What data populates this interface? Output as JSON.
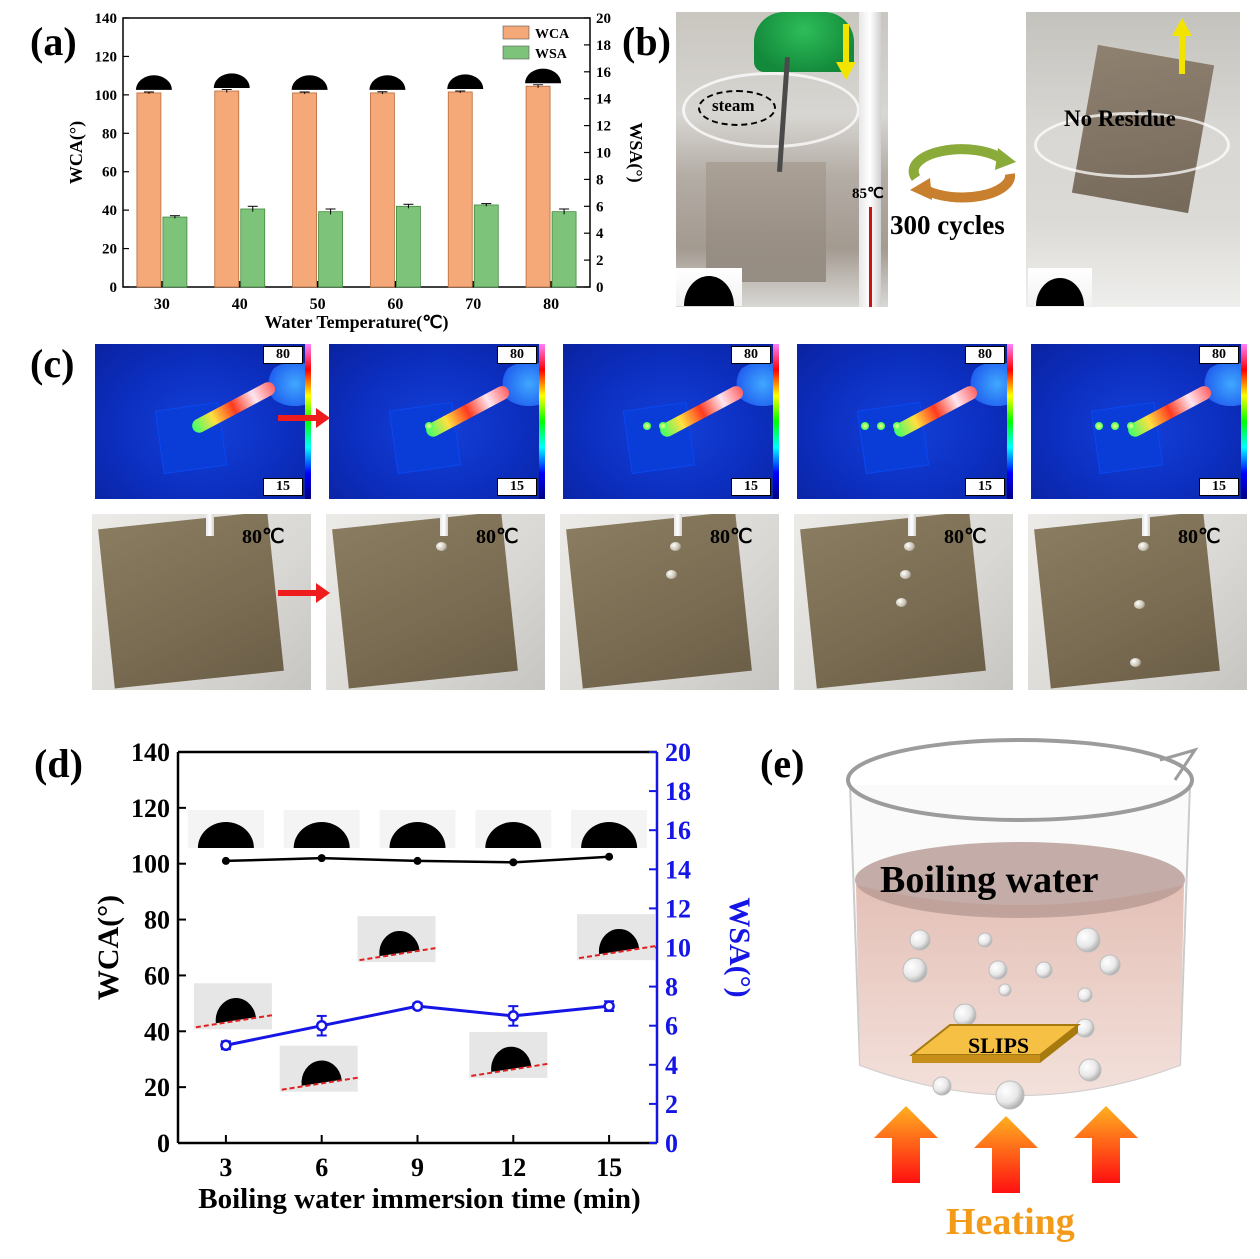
{
  "panel_labels": {
    "a": "(a)",
    "b": "(b)",
    "c": "(c)",
    "d": "(d)",
    "e": "(e)"
  },
  "chart_data": [
    {
      "id": "a",
      "type": "bar",
      "categories": [
        "30",
        "40",
        "50",
        "60",
        "70",
        "80"
      ],
      "series": [
        {
          "name": "WCA",
          "axis": "left",
          "values": [
            101,
            102,
            101,
            101,
            101.5,
            104.5
          ],
          "errors": [
            0.5,
            0.8,
            0.5,
            0.6,
            0.5,
            0.8
          ],
          "color": "#f5a878"
        },
        {
          "name": "WSA",
          "axis": "right",
          "values": [
            5.2,
            5.8,
            5.6,
            6.0,
            6.1,
            5.6
          ],
          "errors": [
            0.1,
            0.2,
            0.2,
            0.15,
            0.1,
            0.2
          ],
          "color": "#7dc47a"
        }
      ],
      "xlabel": "Water Temperature(℃)",
      "ylabel_left": "WCA(°)",
      "ylabel_right": "WSA(°)",
      "ylim_left": [
        0,
        140
      ],
      "ylim_right": [
        0,
        20
      ],
      "yticks_left": [
        "0",
        "20",
        "40",
        "60",
        "80",
        "100",
        "120",
        "140"
      ],
      "yticks_right": [
        "0",
        "2",
        "4",
        "6",
        "8",
        "10",
        "12",
        "14",
        "16",
        "18",
        "20"
      ],
      "legend_position": "top-right"
    },
    {
      "id": "d",
      "type": "line",
      "x": [
        3,
        6,
        9,
        12,
        15
      ],
      "xticks": [
        "3",
        "6",
        "9",
        "12",
        "15"
      ],
      "series": [
        {
          "name": "WCA",
          "axis": "left",
          "values": [
            101,
            102,
            101,
            100.5,
            102.5
          ],
          "color": "#000000"
        },
        {
          "name": "WSA",
          "axis": "right",
          "values": [
            5.0,
            6.0,
            7.0,
            6.5,
            7.0
          ],
          "errors": [
            0.2,
            0.5,
            0.15,
            0.5,
            0.25
          ],
          "color": "#1515e6"
        }
      ],
      "xlabel": "Boiling water immersion time (min)",
      "ylabel_left": "WCA(°)",
      "ylabel_right": "WSA(°)",
      "ylim_left": [
        0,
        140
      ],
      "ylim_right": [
        0,
        20
      ],
      "yticks_left": [
        "0",
        "20",
        "40",
        "60",
        "80",
        "100",
        "120",
        "140"
      ],
      "yticks_right": [
        "0",
        "2",
        "4",
        "6",
        "8",
        "10",
        "12",
        "14",
        "16",
        "18",
        "20"
      ]
    }
  ],
  "panel_b": {
    "steam_label": "steam",
    "temp_label": "85℃",
    "cycles_label": "300 cycles",
    "residue_label": "No Residue"
  },
  "panel_c": {
    "scale_max": "80",
    "scale_min": "15",
    "surface_temp": "80℃",
    "drops_per_frame": [
      0,
      1,
      2,
      3,
      3
    ]
  },
  "panel_e": {
    "liquid_label": "Boiling water",
    "sample_label": "SLIPS",
    "heat_label": "Heating"
  }
}
